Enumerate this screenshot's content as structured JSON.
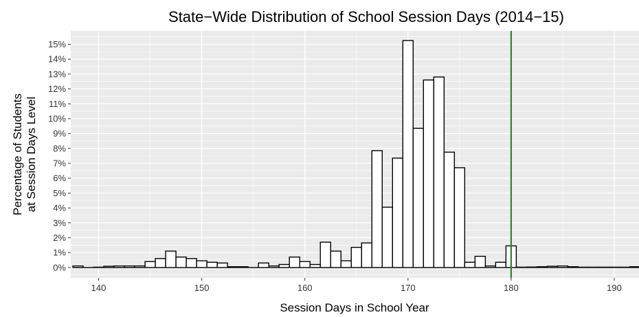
{
  "chart_data": {
    "type": "bar",
    "title": "State−Wide Distribution of School Session Days (2014−15)",
    "xlabel": "Session Days in School Year",
    "ylabel_lines": [
      "Percentage of Students",
      "at Session Days Level"
    ],
    "x": [
      138,
      139,
      140,
      141,
      142,
      143,
      144,
      145,
      146,
      147,
      148,
      149,
      150,
      151,
      152,
      153,
      154,
      155,
      156,
      157,
      158,
      159,
      160,
      161,
      162,
      163,
      164,
      165,
      166,
      167,
      168,
      169,
      170,
      171,
      172,
      173,
      174,
      175,
      176,
      177,
      178,
      179,
      180,
      181,
      182,
      183,
      184,
      185,
      186,
      187,
      188,
      189,
      190,
      191,
      192
    ],
    "values": [
      0.1,
      0,
      0.02,
      0.08,
      0.1,
      0.1,
      0.1,
      0.4,
      0.6,
      1.1,
      0.7,
      0.6,
      0.45,
      0.35,
      0.3,
      0.05,
      0.05,
      0,
      0.3,
      0.1,
      0.2,
      0.7,
      0.4,
      0.2,
      1.7,
      1.1,
      0.45,
      1.35,
      1.65,
      7.85,
      4.05,
      7.35,
      15.25,
      9.35,
      12.6,
      12.8,
      7.75,
      6.7,
      0.35,
      0.75,
      0.1,
      0.35,
      1.45,
      0.02,
      0.03,
      0.05,
      0.08,
      0.1,
      0.05,
      0.02,
      0.02,
      0.02,
      0.02,
      0.02,
      0.05
    ],
    "bin_width": 1,
    "xlim": [
      137.3,
      192.4
    ],
    "ylim": [
      -0.7,
      15.9
    ],
    "x_ticks": [
      140,
      150,
      160,
      170,
      180,
      190
    ],
    "x_tick_labels": [
      "140",
      "150",
      "160",
      "170",
      "180",
      "190"
    ],
    "y_ticks": [
      0,
      1,
      2,
      3,
      4,
      5,
      6,
      7,
      8,
      9,
      10,
      11,
      12,
      13,
      14,
      15
    ],
    "y_tick_labels": [
      "0%",
      "1%",
      "2%",
      "3%",
      "4%",
      "5%",
      "6%",
      "7%",
      "8%",
      "9%",
      "10%",
      "11%",
      "12%",
      "13%",
      "14%",
      "15%"
    ],
    "reference_line": {
      "x": 180,
      "color": "#228b22"
    },
    "panel_background": "#ebebeb",
    "gridline_color": "#ffffff",
    "bar_fill": "#ffffff",
    "bar_stroke": "#000000",
    "grid": true,
    "legend": "none"
  }
}
